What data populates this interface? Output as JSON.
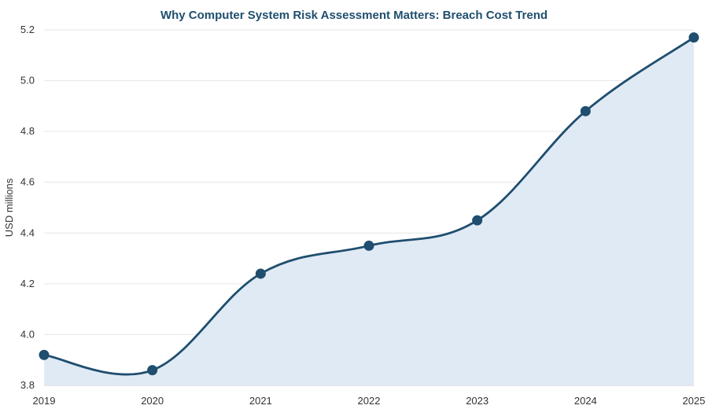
{
  "chart_data": {
    "type": "area",
    "title": "Why Computer System Risk Assessment Matters: Breach Cost Trend",
    "xlabel": "",
    "ylabel": "USD millions",
    "categories": [
      "2019",
      "2020",
      "2021",
      "2022",
      "2023",
      "2024",
      "2025"
    ],
    "series": [
      {
        "values": [
          3.92,
          3.86,
          4.24,
          4.35,
          4.45,
          4.88,
          5.17
        ]
      }
    ],
    "ylim": [
      3.8,
      5.2
    ],
    "yticks": [
      "3.8",
      "4.0",
      "4.2",
      "4.4",
      "4.6",
      "4.8",
      "5.0",
      "5.2"
    ],
    "grid": true,
    "legend": "none",
    "colors": {
      "line": "#1f4e6e",
      "fill": "#dde8f4",
      "grid": "#e6e6e6",
      "marker": "#1f4e6e"
    }
  }
}
